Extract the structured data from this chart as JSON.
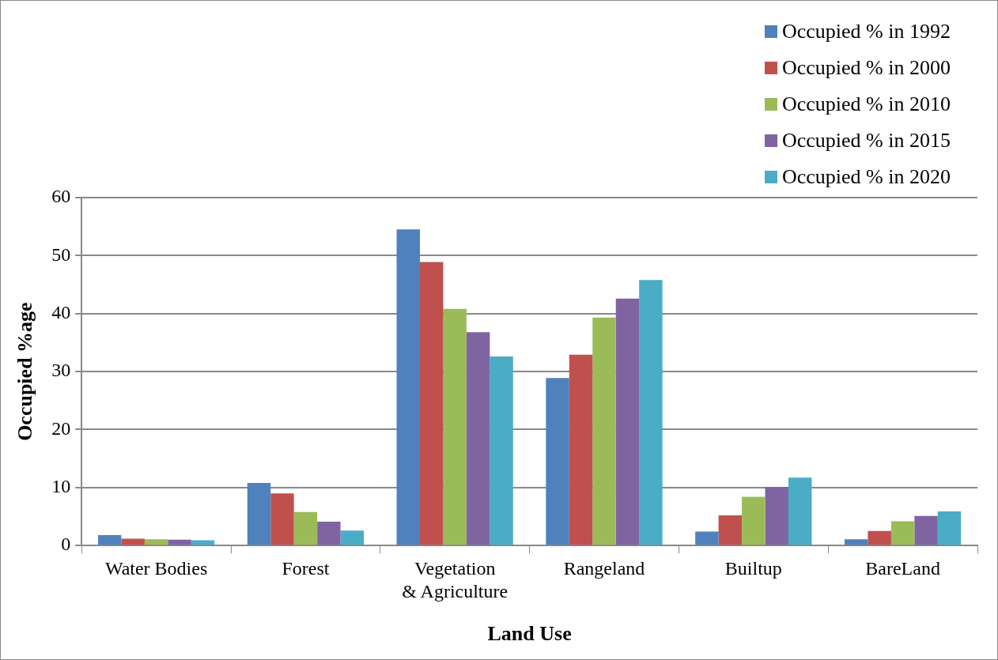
{
  "chart_data": {
    "type": "bar",
    "xlabel": "Land Use",
    "ylabel": "Occupied %age",
    "categories": [
      "Water Bodies",
      "Forest",
      "Vegetation & Agriculture",
      "Rangeland",
      "Builtup",
      "BareLand"
    ],
    "series": [
      {
        "name": "Occupied % in 1992",
        "color": "#4f81bd",
        "values": [
          1.8,
          10.8,
          54.5,
          28.9,
          2.4,
          1.1
        ]
      },
      {
        "name": "Occupied % in 2000",
        "color": "#c0504d",
        "values": [
          1.2,
          9.0,
          48.9,
          32.9,
          5.2,
          2.5
        ]
      },
      {
        "name": "Occupied % in 2010",
        "color": "#9bbb59",
        "values": [
          1.1,
          5.8,
          40.8,
          39.3,
          8.4,
          4.2
        ]
      },
      {
        "name": "Occupied % in 2015",
        "color": "#8064a2",
        "values": [
          1.0,
          4.1,
          36.8,
          42.6,
          10.1,
          5.1
        ]
      },
      {
        "name": "Occupied % in 2020",
        "color": "#4bacc6",
        "values": [
          0.9,
          2.6,
          32.6,
          45.8,
          11.7,
          5.9
        ]
      }
    ],
    "ylim": [
      0,
      60
    ],
    "yticks": [
      0,
      10,
      20,
      30,
      40,
      50,
      60
    ],
    "grid": "y",
    "legend": "top right"
  }
}
